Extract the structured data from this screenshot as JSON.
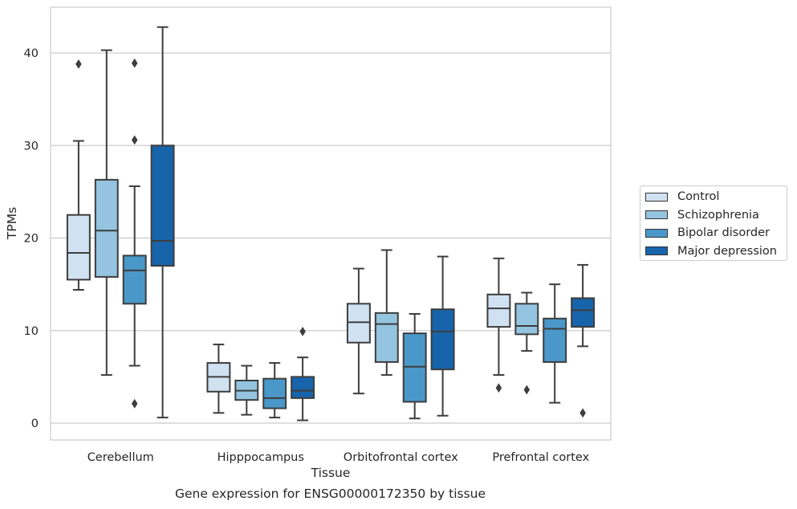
{
  "chart_data": {
    "type": "box",
    "title": "",
    "caption": "Gene expression for ENSG00000172350 by tissue",
    "xlabel": "Tissue",
    "ylabel": "TPMs",
    "ylim": [
      -1.8,
      45
    ],
    "yticks": [
      0,
      10,
      20,
      30,
      40
    ],
    "grid": "horizontal",
    "legend_position": "right",
    "categories": [
      "Cerebellum",
      "Hipppocampus",
      "Orbitofrontal cortex",
      "Prefrontal cortex"
    ],
    "series": [
      {
        "name": "Control",
        "color": "#d0e1f2",
        "boxes": [
          {
            "whislo": 14.4,
            "q1": 15.5,
            "med": 18.4,
            "q3": 22.5,
            "whishi": 30.5,
            "fliers": [
              38.8
            ]
          },
          {
            "whislo": 1.1,
            "q1": 3.4,
            "med": 5.0,
            "q3": 6.5,
            "whishi": 8.5,
            "fliers": []
          },
          {
            "whislo": 3.2,
            "q1": 8.7,
            "med": 10.9,
            "q3": 12.9,
            "whishi": 16.7,
            "fliers": []
          },
          {
            "whislo": 5.2,
            "q1": 10.4,
            "med": 12.4,
            "q3": 13.9,
            "whishi": 17.8,
            "fliers": [
              3.8
            ]
          }
        ]
      },
      {
        "name": "Schizophrenia",
        "color": "#94c4df",
        "boxes": [
          {
            "whislo": 5.2,
            "q1": 15.8,
            "med": 20.8,
            "q3": 26.3,
            "whishi": 40.3,
            "fliers": []
          },
          {
            "whislo": 0.9,
            "q1": 2.5,
            "med": 3.5,
            "q3": 4.6,
            "whishi": 6.2,
            "fliers": []
          },
          {
            "whislo": 5.2,
            "q1": 6.6,
            "med": 10.7,
            "q3": 11.9,
            "whishi": 18.7,
            "fliers": []
          },
          {
            "whislo": 7.8,
            "q1": 9.6,
            "med": 10.5,
            "q3": 12.9,
            "whishi": 14.1,
            "fliers": [
              3.6
            ]
          }
        ]
      },
      {
        "name": "Bipolar disorder",
        "color": "#4a98c9",
        "boxes": [
          {
            "whislo": 6.2,
            "q1": 12.9,
            "med": 16.5,
            "q3": 18.1,
            "whishi": 25.6,
            "fliers": [
              38.9,
              30.6,
              2.1
            ]
          },
          {
            "whislo": 0.6,
            "q1": 1.6,
            "med": 2.7,
            "q3": 4.8,
            "whishi": 6.5,
            "fliers": []
          },
          {
            "whislo": 0.5,
            "q1": 2.3,
            "med": 6.1,
            "q3": 9.7,
            "whishi": 11.8,
            "fliers": []
          },
          {
            "whislo": 2.2,
            "q1": 6.6,
            "med": 10.2,
            "q3": 11.3,
            "whishi": 15.0,
            "fliers": []
          }
        ]
      },
      {
        "name": "Major depression",
        "color": "#1764ab",
        "boxes": [
          {
            "whislo": 0.6,
            "q1": 17.0,
            "med": 19.7,
            "q3": 30.0,
            "whishi": 42.8,
            "fliers": []
          },
          {
            "whislo": 0.3,
            "q1": 2.7,
            "med": 3.5,
            "q3": 5.0,
            "whishi": 7.1,
            "fliers": [
              9.9
            ]
          },
          {
            "whislo": 0.8,
            "q1": 5.8,
            "med": 9.9,
            "q3": 12.3,
            "whishi": 18.0,
            "fliers": []
          },
          {
            "whislo": 8.3,
            "q1": 10.4,
            "med": 12.2,
            "q3": 13.5,
            "whishi": 17.1,
            "fliers": [
              1.1
            ]
          }
        ]
      }
    ]
  }
}
